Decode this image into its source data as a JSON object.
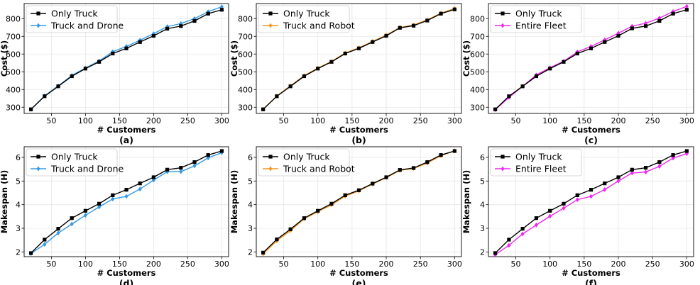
{
  "chart_data": [
    {
      "panel_label": "(a)",
      "type": "line",
      "xlabel": "# Customers",
      "ylabel": "Cost ($)",
      "xlim": [
        10,
        310
      ],
      "ylim": [
        265,
        885
      ],
      "xticks": [
        50,
        100,
        150,
        200,
        250,
        300
      ],
      "xtick_labels": [
        "50",
        "100",
        "150",
        "200",
        "250",
        "300"
      ],
      "yticks": [
        300,
        400,
        500,
        600,
        700,
        800
      ],
      "ytick_labels": [
        "300",
        "400",
        "500",
        "600",
        "700",
        "800"
      ],
      "x": [
        20,
        40,
        60,
        80,
        100,
        120,
        140,
        160,
        180,
        200,
        220,
        240,
        260,
        280,
        300
      ],
      "series": [
        {
          "name": "Only Truck",
          "color": "#000000",
          "marker": "square",
          "values": [
            288,
            362,
            418,
            475,
            518,
            556,
            603,
            632,
            668,
            703,
            743,
            758,
            787,
            828,
            850
          ]
        },
        {
          "name": "Truck and Drone",
          "color": "#3399e6",
          "marker": "diamond",
          "values": [
            288,
            364,
            420,
            479,
            521,
            561,
            613,
            643,
            678,
            715,
            755,
            772,
            800,
            839,
            867
          ]
        }
      ],
      "legend_position": "top-left"
    },
    {
      "panel_label": "(b)",
      "type": "line",
      "xlabel": "# Customers",
      "ylabel": "Cost ($)",
      "xlim": [
        10,
        310
      ],
      "ylim": [
        265,
        885
      ],
      "xticks": [
        50,
        100,
        150,
        200,
        250,
        300
      ],
      "xtick_labels": [
        "50",
        "100",
        "150",
        "200",
        "250",
        "300"
      ],
      "yticks": [
        300,
        400,
        500,
        600,
        700,
        800
      ],
      "ytick_labels": [
        "300",
        "400",
        "500",
        "600",
        "700",
        "800"
      ],
      "x": [
        20,
        40,
        60,
        80,
        100,
        120,
        140,
        160,
        180,
        200,
        220,
        240,
        260,
        280,
        300
      ],
      "series": [
        {
          "name": "Only Truck",
          "color": "#000000",
          "marker": "square",
          "values": [
            288,
            362,
            418,
            475,
            518,
            556,
            603,
            632,
            668,
            703,
            748,
            760,
            789,
            828,
            852
          ]
        },
        {
          "name": "Truck and Robot",
          "color": "#f0961e",
          "marker": "diamond",
          "values": [
            289,
            363,
            421,
            478,
            521,
            558,
            606,
            635,
            671,
            707,
            750,
            764,
            793,
            831,
            857
          ]
        }
      ],
      "legend_position": "top-left"
    },
    {
      "panel_label": "(c)",
      "type": "line",
      "xlabel": "# Customers",
      "ylabel": "Cost ($)",
      "xlim": [
        10,
        310
      ],
      "ylim": [
        265,
        885
      ],
      "xticks": [
        50,
        100,
        150,
        200,
        250,
        300
      ],
      "xtick_labels": [
        "50",
        "100",
        "150",
        "200",
        "250",
        "300"
      ],
      "yticks": [
        300,
        400,
        500,
        600,
        700,
        800
      ],
      "ytick_labels": [
        "300",
        "400",
        "500",
        "600",
        "700",
        "800"
      ],
      "x": [
        20,
        40,
        60,
        80,
        100,
        120,
        140,
        160,
        180,
        200,
        220,
        240,
        260,
        280,
        300
      ],
      "series": [
        {
          "name": "Only Truck",
          "color": "#000000",
          "marker": "square",
          "values": [
            288,
            362,
            418,
            475,
            518,
            556,
            603,
            632,
            668,
            703,
            745,
            758,
            787,
            828,
            850
          ]
        },
        {
          "name": "Entire Fleet",
          "color": "#ee28ee",
          "marker": "diamond",
          "values": [
            286,
            355,
            418,
            482,
            523,
            559,
            612,
            643,
            680,
            718,
            757,
            774,
            803,
            840,
            869
          ]
        }
      ],
      "legend_position": "top-left"
    },
    {
      "panel_label": "(d)",
      "type": "line",
      "xlabel": "# Customers",
      "ylabel": "Makespan (H)",
      "xlim": [
        10,
        310
      ],
      "ylim": [
        1.8,
        6.45
      ],
      "xticks": [
        50,
        100,
        150,
        200,
        250,
        300
      ],
      "xtick_labels": [
        "50",
        "100",
        "150",
        "200",
        "250",
        "300"
      ],
      "yticks": [
        2,
        3,
        4,
        5,
        6
      ],
      "ytick_labels": [
        "2",
        "3",
        "4",
        "5",
        "6"
      ],
      "x": [
        20,
        40,
        60,
        80,
        100,
        120,
        140,
        160,
        180,
        200,
        220,
        240,
        260,
        280,
        300
      ],
      "series": [
        {
          "name": "Only Truck",
          "color": "#000000",
          "marker": "square",
          "values": [
            1.95,
            2.52,
            2.98,
            3.43,
            3.74,
            4.04,
            4.4,
            4.63,
            4.9,
            5.16,
            5.48,
            5.56,
            5.8,
            6.1,
            6.27
          ]
        },
        {
          "name": "Truck and Drone",
          "color": "#3399e6",
          "marker": "diamond",
          "values": [
            1.93,
            2.32,
            2.8,
            3.18,
            3.55,
            3.9,
            4.24,
            4.35,
            4.66,
            5.04,
            5.39,
            5.4,
            5.64,
            5.98,
            6.2
          ]
        }
      ],
      "legend_position": "top-left"
    },
    {
      "panel_label": "(e)",
      "type": "line",
      "xlabel": "# Customers",
      "ylabel": "Makespan (H)",
      "xlim": [
        10,
        310
      ],
      "ylim": [
        1.8,
        6.45
      ],
      "xticks": [
        50,
        100,
        150,
        200,
        250,
        300
      ],
      "xtick_labels": [
        "50",
        "100",
        "150",
        "200",
        "250",
        "300"
      ],
      "yticks": [
        2,
        3,
        4,
        5,
        6
      ],
      "ytick_labels": [
        "2",
        "3",
        "4",
        "5",
        "6"
      ],
      "x": [
        20,
        40,
        60,
        80,
        100,
        120,
        140,
        160,
        180,
        200,
        220,
        240,
        260,
        280,
        300
      ],
      "series": [
        {
          "name": "Only Truck",
          "color": "#000000",
          "marker": "square",
          "values": [
            1.97,
            2.53,
            2.96,
            3.43,
            3.74,
            4.04,
            4.4,
            4.61,
            4.89,
            5.16,
            5.47,
            5.55,
            5.8,
            6.1,
            6.27
          ]
        },
        {
          "name": "Truck and Robot",
          "color": "#f0961e",
          "marker": "diamond",
          "values": [
            1.92,
            2.47,
            2.9,
            3.4,
            3.7,
            3.99,
            4.36,
            4.58,
            4.87,
            5.14,
            5.45,
            5.53,
            5.76,
            6.07,
            6.28
          ]
        }
      ],
      "legend_position": "top-left"
    },
    {
      "panel_label": "(f)",
      "type": "line",
      "xlabel": "# Customers",
      "ylabel": "Makespan (H)",
      "xlim": [
        10,
        310
      ],
      "ylim": [
        1.8,
        6.45
      ],
      "xticks": [
        50,
        100,
        150,
        200,
        250,
        300
      ],
      "xtick_labels": [
        "50",
        "100",
        "150",
        "200",
        "250",
        "300"
      ],
      "yticks": [
        2,
        3,
        4,
        5,
        6
      ],
      "ytick_labels": [
        "2",
        "3",
        "4",
        "5",
        "6"
      ],
      "x": [
        20,
        40,
        60,
        80,
        100,
        120,
        140,
        160,
        180,
        200,
        220,
        240,
        260,
        280,
        300
      ],
      "series": [
        {
          "name": "Only Truck",
          "color": "#000000",
          "marker": "square",
          "values": [
            1.95,
            2.52,
            2.98,
            3.43,
            3.74,
            4.04,
            4.4,
            4.63,
            4.9,
            5.16,
            5.48,
            5.56,
            5.8,
            6.1,
            6.27
          ]
        },
        {
          "name": "Entire Fleet",
          "color": "#ee28ee",
          "marker": "diamond",
          "values": [
            1.88,
            2.28,
            2.76,
            3.14,
            3.51,
            3.85,
            4.21,
            4.35,
            4.64,
            5.0,
            5.34,
            5.38,
            5.62,
            5.97,
            6.16
          ]
        }
      ],
      "legend_position": "top-left"
    }
  ]
}
